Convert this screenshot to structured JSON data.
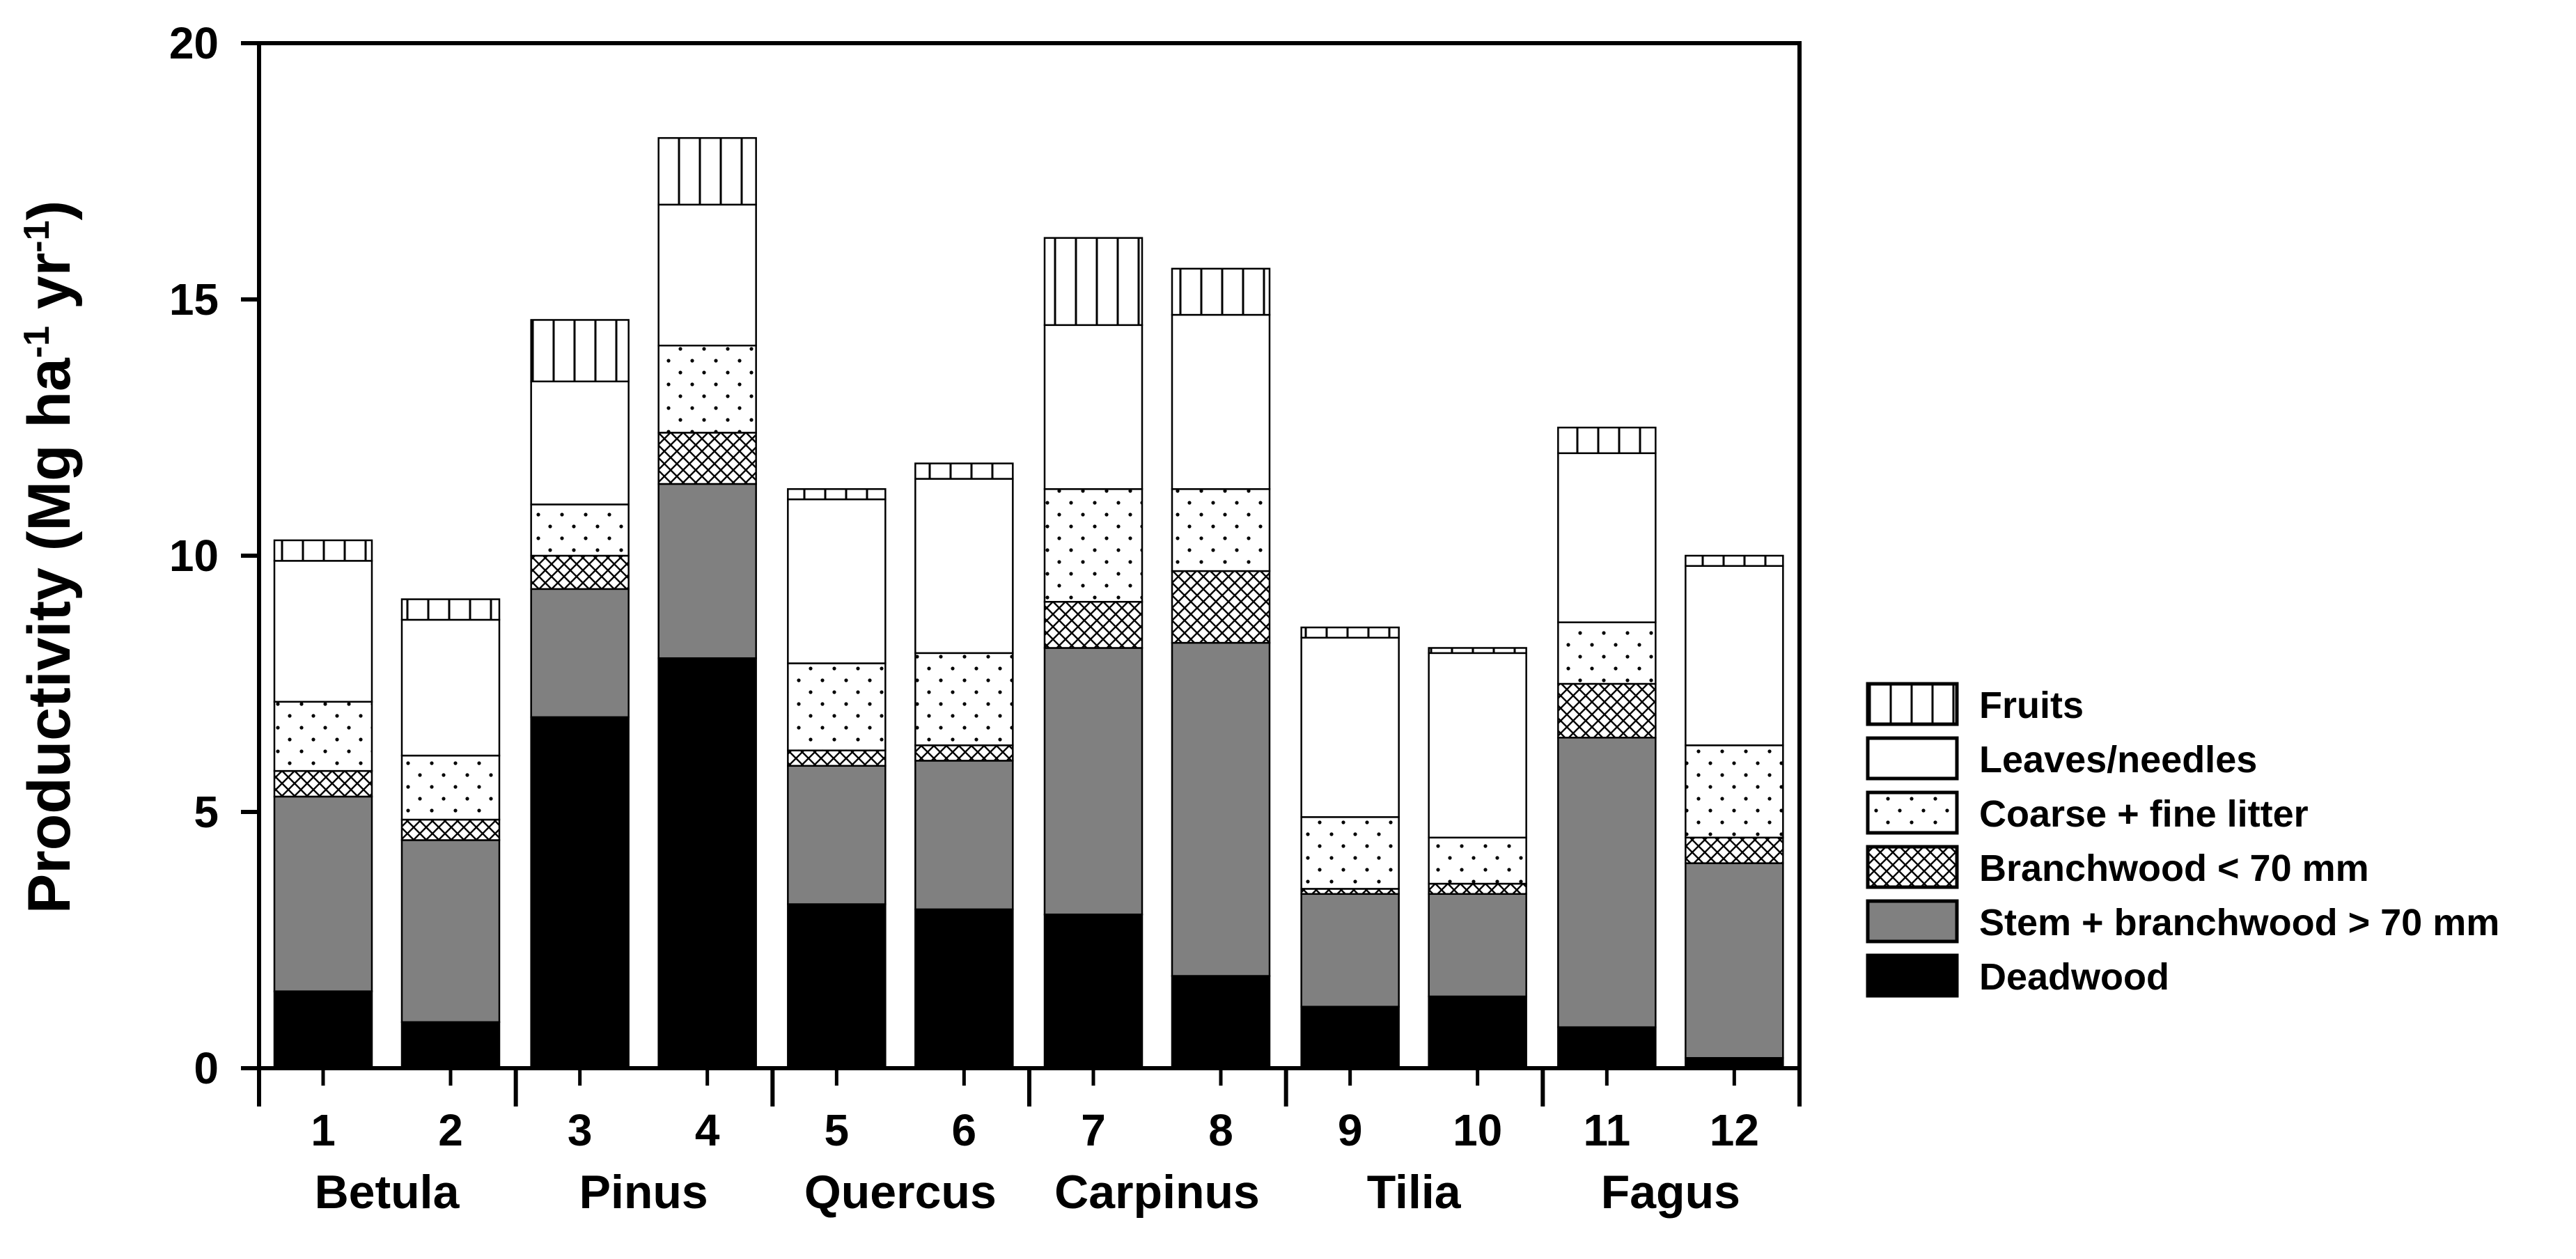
{
  "chart_data": {
    "type": "bar",
    "stacked": true,
    "title": "",
    "xlabel": "",
    "ylabel_main": "Productivity (Mg ha",
    "ylabel_sup1": "-1",
    "ylabel_mid": " yr",
    "ylabel_sup2": "-1",
    "ylabel_end": ")",
    "ylim": [
      0,
      20
    ],
    "yticks": [
      0,
      5,
      10,
      15,
      20
    ],
    "grid": false,
    "legend_position": "right",
    "categories": [
      "1",
      "2",
      "3",
      "4",
      "5",
      "6",
      "7",
      "8",
      "9",
      "10",
      "11",
      "12"
    ],
    "groups": [
      {
        "name": "Betula",
        "bars": [
          0,
          1
        ]
      },
      {
        "name": "Pinus",
        "bars": [
          2,
          3
        ]
      },
      {
        "name": "Quercus",
        "bars": [
          4,
          5
        ]
      },
      {
        "name": "Carpinus",
        "bars": [
          6,
          7
        ]
      },
      {
        "name": "Tilia",
        "bars": [
          8,
          9
        ]
      },
      {
        "name": "Fagus",
        "bars": [
          10,
          11
        ]
      }
    ],
    "series": [
      {
        "name": "Deadwood",
        "fill": "solid-black",
        "color": "#000000",
        "values": [
          1.5,
          0.9,
          6.85,
          8.0,
          3.2,
          3.1,
          3.0,
          1.8,
          1.2,
          1.4,
          0.8,
          0.2
        ]
      },
      {
        "name": "Stem + branchwood > 70 mm",
        "fill": "solid-gray",
        "color": "#808080",
        "values": [
          3.8,
          3.55,
          2.5,
          3.4,
          2.7,
          2.9,
          5.2,
          6.5,
          2.2,
          2.0,
          5.65,
          3.8
        ]
      },
      {
        "name": "Branchwood < 70 mm",
        "fill": "crosshatch",
        "values": [
          0.5,
          0.4,
          0.65,
          1.0,
          0.3,
          0.3,
          0.9,
          1.4,
          0.1,
          0.2,
          1.05,
          0.5
        ]
      },
      {
        "name": "Coarse + fine litter",
        "fill": "dots",
        "values": [
          1.35,
          1.25,
          1.0,
          1.7,
          1.7,
          1.8,
          2.2,
          1.6,
          1.4,
          0.9,
          1.2,
          1.8
        ]
      },
      {
        "name": "Leaves/needles",
        "fill": "white",
        "values": [
          2.75,
          2.65,
          2.4,
          2.75,
          3.2,
          3.4,
          3.2,
          3.4,
          3.5,
          3.6,
          3.3,
          3.5
        ]
      },
      {
        "name": "Fruits",
        "fill": "vertical-lines",
        "values": [
          0.4,
          0.4,
          1.2,
          1.3,
          0.2,
          0.3,
          1.7,
          0.9,
          0.2,
          0.1,
          0.5,
          0.2
        ]
      }
    ],
    "legend_order": [
      "Fruits",
      "Leaves/needles",
      "Coarse + fine litter",
      "Branchwood < 70 mm",
      "Stem + branchwood > 70 mm",
      "Deadwood"
    ]
  }
}
